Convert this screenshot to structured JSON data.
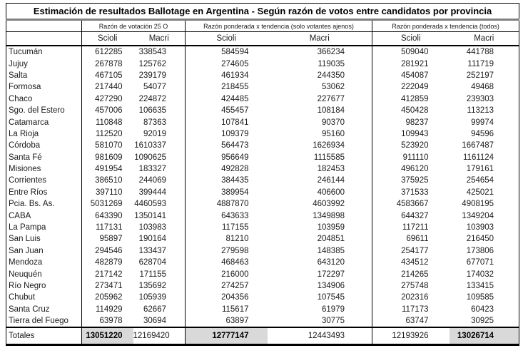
{
  "title": "Estimación de resultados Ballotage en Argentina - Según razón de votos entre candidatos por provincia",
  "colors": {
    "highlight_bg": "#d9d9d9",
    "title_rule": "#7f7f7f",
    "border": "#000000"
  },
  "chart_data": {
    "type": "table",
    "title": "Estimación de resultados Ballotage en Argentina - Según razón de votos entre candidatos por provincia",
    "group_headers": [
      "Razón de votación 25 O",
      "Razón ponderada x tendencia (solo votantes ajenos)",
      "Razón ponderada x tendencia (todos)"
    ],
    "subheaders": [
      "Scioli",
      "Macri"
    ],
    "rows": [
      {
        "province": "Tucumán",
        "values": [
          612285,
          338543,
          584594,
          366234,
          509040,
          441788
        ]
      },
      {
        "province": "Jujuy",
        "values": [
          267878,
          125762,
          274605,
          119035,
          281921,
          111719
        ]
      },
      {
        "province": "Salta",
        "values": [
          467105,
          239179,
          461934,
          244350,
          454087,
          252197
        ]
      },
      {
        "province": "Formosa",
        "values": [
          217440,
          54077,
          218455,
          53062,
          222049,
          49468
        ]
      },
      {
        "province": "Chaco",
        "values": [
          427290,
          224872,
          424485,
          227677,
          412859,
          239303
        ]
      },
      {
        "province": "Sgo. del Estero",
        "values": [
          457006,
          106635,
          455457,
          108184,
          450428,
          113213
        ]
      },
      {
        "province": "Catamarca",
        "values": [
          110848,
          87363,
          107841,
          90370,
          98237,
          99974
        ]
      },
      {
        "province": "La Rioja",
        "values": [
          112520,
          92019,
          109379,
          95160,
          109943,
          94596
        ]
      },
      {
        "province": "Córdoba",
        "values": [
          581070,
          1610337,
          564473,
          1626934,
          523920,
          1667487
        ]
      },
      {
        "province": "Santa Fé",
        "values": [
          981609,
          1090625,
          956649,
          1115585,
          911110,
          1161124
        ]
      },
      {
        "province": "Misiones",
        "values": [
          491954,
          183327,
          492828,
          182453,
          496120,
          179161
        ]
      },
      {
        "province": "Corrientes",
        "values": [
          386510,
          244069,
          384435,
          246144,
          375925,
          254654
        ]
      },
      {
        "province": "Entre Ríos",
        "values": [
          397110,
          399444,
          389954,
          406600,
          371533,
          425021
        ]
      },
      {
        "province": "Pcia. Bs. As.",
        "values": [
          5031269,
          4460593,
          4887870,
          4603992,
          4583667,
          4908195
        ]
      },
      {
        "province": "CABA",
        "values": [
          643390,
          1350141,
          643633,
          1349898,
          644327,
          1349204
        ]
      },
      {
        "province": "La Pampa",
        "values": [
          117131,
          103983,
          117155,
          103959,
          117211,
          103903
        ]
      },
      {
        "province": "San Luis",
        "values": [
          95897,
          190164,
          81210,
          204851,
          69611,
          216450
        ]
      },
      {
        "province": "San Juan",
        "values": [
          294546,
          133437,
          279598,
          148385,
          254177,
          173806
        ]
      },
      {
        "province": "Mendoza",
        "values": [
          482879,
          628704,
          468463,
          643120,
          434512,
          677071
        ]
      },
      {
        "province": "Neuquén",
        "values": [
          217142,
          171155,
          216000,
          172297,
          214265,
          174032
        ]
      },
      {
        "province": "Río Negro",
        "values": [
          273471,
          135692,
          274257,
          134906,
          275748,
          133415
        ]
      },
      {
        "province": "Chubut",
        "values": [
          205962,
          105939,
          204356,
          107545,
          202316,
          109585
        ]
      },
      {
        "province": "Santa Cruz",
        "values": [
          114929,
          62667,
          115617,
          61979,
          117173,
          60423
        ]
      },
      {
        "province": "Tierra del Fuego",
        "values": [
          63978,
          30694,
          63897,
          30775,
          63747,
          30925
        ]
      }
    ],
    "totals": {
      "label": "Totales",
      "values": [
        13051220,
        12169420,
        12777147,
        12443493,
        12193926,
        13026714
      ],
      "highlighted_indices": [
        0,
        2,
        5
      ]
    }
  }
}
